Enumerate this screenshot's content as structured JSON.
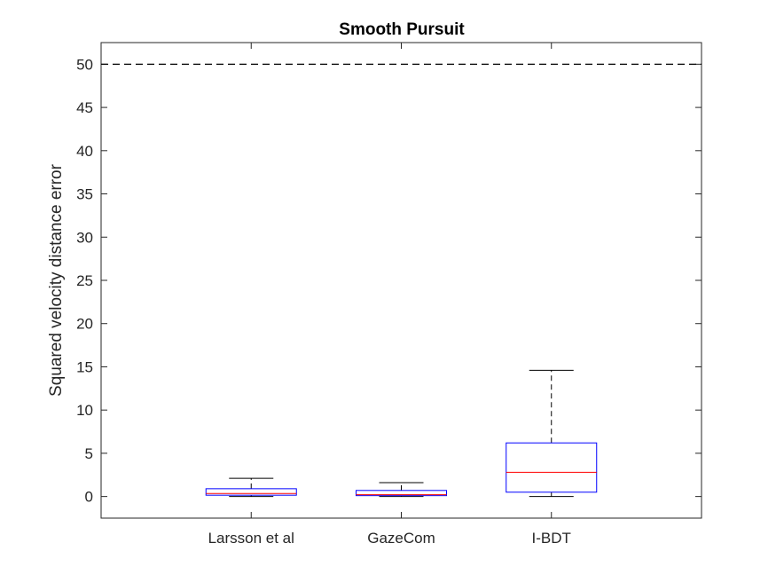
{
  "chart_data": {
    "type": "box",
    "title": "Smooth Pursuit",
    "xlabel": "",
    "ylabel": "Squared velocity distance error",
    "ylim": [
      -2.5,
      52.5
    ],
    "yticks": [
      0,
      5,
      10,
      15,
      20,
      25,
      30,
      35,
      40,
      45,
      50
    ],
    "ytick_labels": [
      "0",
      "5",
      "10",
      "15",
      "20",
      "25",
      "30",
      "35",
      "40",
      "45",
      "50"
    ],
    "reference_line": {
      "y": 50,
      "style": "dashed",
      "color": "#000000"
    },
    "grid": false,
    "categories": [
      "Larsson et al",
      "GazeCom",
      "I-BDT"
    ],
    "boxes": [
      {
        "category": "Larsson et al",
        "whisker_low": 0.0,
        "q1": 0.15,
        "median": 0.35,
        "q3": 0.9,
        "whisker_high": 2.1
      },
      {
        "category": "GazeCom",
        "whisker_low": 0.0,
        "q1": 0.1,
        "median": 0.2,
        "q3": 0.7,
        "whisker_high": 1.6
      },
      {
        "category": "I-BDT",
        "whisker_low": 0.0,
        "q1": 0.5,
        "median": 2.8,
        "q3": 6.2,
        "whisker_high": 14.6
      }
    ],
    "colors": {
      "box": "#0000ff",
      "median": "#ff0000",
      "whisker": "#000000"
    }
  }
}
